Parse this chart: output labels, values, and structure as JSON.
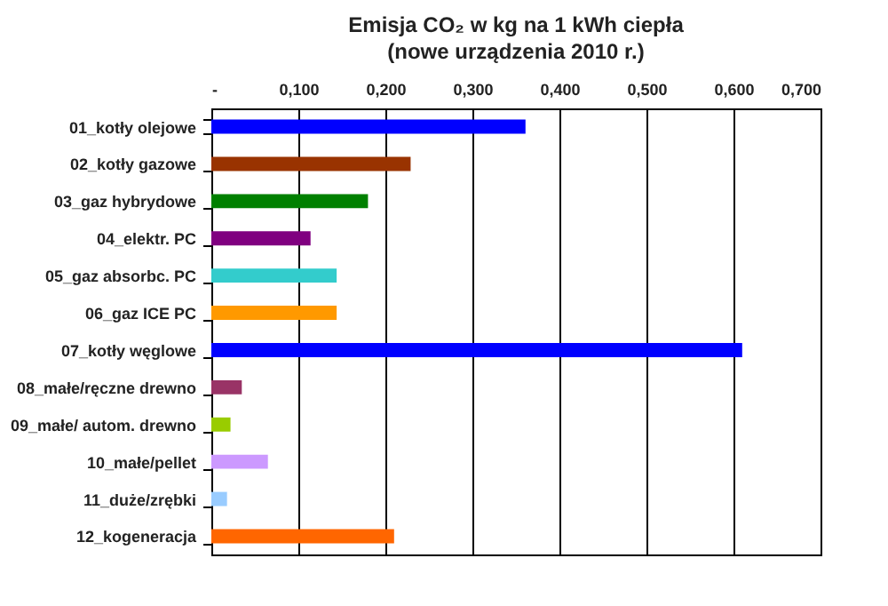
{
  "chart_data": {
    "type": "bar",
    "orientation": "horizontal",
    "title": "Emisja CO₂ w kg na 1 kWh ciepła",
    "subtitle": "(nowe urządzenia 2010 r.)",
    "categories": [
      "01_kotły olejowe",
      "02_kotły gazowe",
      "03_gaz hybrydowe",
      "04_elektr. PC",
      "05_gaz absorbc. PC",
      "06_gaz ICE PC",
      "07_kotły węglowe",
      "08_małe/ręczne drewno",
      "09_małe/ autom. drewno",
      "10_małe/pellet",
      "11_duże/zrębki",
      "12_kogeneracja"
    ],
    "values": [
      0.361,
      0.229,
      0.18,
      0.114,
      0.144,
      0.144,
      0.61,
      0.035,
      0.022,
      0.065,
      0.018,
      0.21
    ],
    "colors": [
      "#0000ff",
      "#993300",
      "#008000",
      "#800080",
      "#33cccc",
      "#ff9900",
      "#0000ff",
      "#993366",
      "#99cc00",
      "#cc99ff",
      "#99ccff",
      "#ff6600"
    ],
    "xlim": [
      0,
      0.7
    ],
    "xticks": [
      {
        "value": 0,
        "label": "-"
      },
      {
        "value": 0.1,
        "label": "0,100"
      },
      {
        "value": 0.2,
        "label": "0,200"
      },
      {
        "value": 0.3,
        "label": "0,300"
      },
      {
        "value": 0.4,
        "label": "0,400"
      },
      {
        "value": 0.5,
        "label": "0,500"
      },
      {
        "value": 0.6,
        "label": "0,600"
      },
      {
        "value": 0.7,
        "label": "0,700"
      }
    ],
    "grid": "x"
  }
}
